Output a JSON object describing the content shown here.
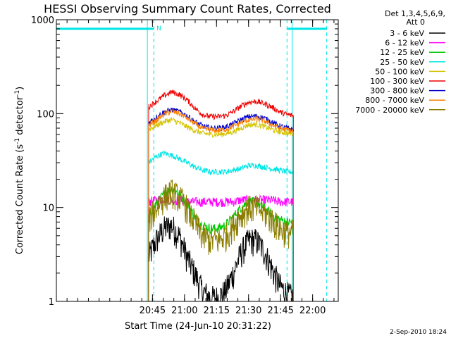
{
  "chart_data": {
    "type": "line",
    "title": "HESSI Observing Summary Count Rates, Corrected",
    "xlabel": "Start Time (24-Jun-10 20:31:22)",
    "ylabel_main": "Corrected Count Rate (s",
    "ylabel_exp1": "-1",
    "ylabel_mid": " detector",
    "ylabel_exp2": "-1",
    "ylabel_end": ")",
    "y_scale": "log",
    "ylim": [
      1,
      1000
    ],
    "xlim_minutes": [
      20.0,
      22.2
    ],
    "x_start_time": "20:31:22",
    "x_ticks": [
      {
        "value": 20.75,
        "label": "20:45"
      },
      {
        "value": 21.0,
        "label": "21:00"
      },
      {
        "value": 21.25,
        "label": "21:15"
      },
      {
        "value": 21.5,
        "label": "21:30"
      },
      {
        "value": 21.75,
        "label": "21:45"
      },
      {
        "value": 22.0,
        "label": "22:00"
      }
    ],
    "y_ticks": [
      {
        "value": 1,
        "label": "1"
      },
      {
        "value": 10,
        "label": "10"
      },
      {
        "value": 100,
        "label": "100"
      },
      {
        "value": 1000,
        "label": "1000"
      }
    ],
    "grid": false,
    "legend_position": "right",
    "legend_header": [
      "Det 1,3,4,5,6,9,",
      "Att 0"
    ],
    "time_x": [
      20.72,
      20.78,
      20.84,
      20.9,
      20.96,
      21.02,
      21.08,
      21.14,
      21.2,
      21.26,
      21.32,
      21.38,
      21.44,
      21.5,
      21.56,
      21.62,
      21.68,
      21.74,
      21.8,
      21.85
    ],
    "series": [
      {
        "name": "3 - 6 keV",
        "color": "#000000",
        "values": [
          3,
          4.5,
          6,
          6.5,
          5,
          3,
          2,
          1.3,
          1.1,
          1.1,
          1.3,
          2,
          3.3,
          4.5,
          4.5,
          3.5,
          2.3,
          1.5,
          1.2,
          1.1
        ]
      },
      {
        "name": "6 - 12 keV",
        "color": "#ff00ff",
        "values": [
          11.5,
          12,
          12.5,
          12,
          12,
          11.5,
          11.5,
          11.5,
          11.5,
          11.5,
          11.5,
          11.5,
          12,
          12,
          12,
          12,
          12,
          11.5,
          11.5,
          11.5
        ]
      },
      {
        "name": "12 - 25 keV",
        "color": "#00cc00",
        "values": [
          8,
          11,
          14,
          16,
          14,
          11,
          8,
          6.5,
          6,
          6,
          6.5,
          8,
          10,
          11.5,
          11.5,
          10,
          8.5,
          7.5,
          7,
          7
        ]
      },
      {
        "name": "25 - 50 keV",
        "color": "#00e6e6",
        "values": [
          30,
          35,
          38,
          36,
          33,
          30,
          27,
          25,
          24,
          24,
          24,
          25,
          26,
          28,
          28,
          27,
          26,
          25,
          24,
          24
        ]
      },
      {
        "name": "50 - 100 keV",
        "color": "#d4c400",
        "values": [
          68,
          75,
          82,
          86,
          80,
          72,
          66,
          62,
          60,
          60,
          61,
          64,
          70,
          76,
          77,
          73,
          68,
          64,
          62,
          61
        ]
      },
      {
        "name": "100 - 300 keV",
        "color": "#ee0000",
        "values": [
          118,
          135,
          155,
          170,
          160,
          140,
          115,
          98,
          93,
          93,
          95,
          105,
          120,
          132,
          135,
          128,
          118,
          105,
          98,
          95
        ]
      },
      {
        "name": "300 - 800 keV",
        "color": "#0000cc",
        "values": [
          80,
          92,
          104,
          110,
          105,
          95,
          82,
          74,
          70,
          70,
          72,
          78,
          86,
          93,
          94,
          90,
          82,
          74,
          70,
          68
        ]
      },
      {
        "name": "800 - 7000 keV",
        "color": "#ff7f00",
        "values": [
          75,
          85,
          98,
          106,
          100,
          90,
          78,
          70,
          67,
          66,
          68,
          73,
          80,
          86,
          88,
          84,
          76,
          70,
          67,
          65
        ]
      },
      {
        "name": "7000 - 20000 keV",
        "color": "#8b7d00",
        "values": [
          7.5,
          10,
          13,
          15,
          13,
          10,
          7,
          5,
          4.5,
          4.5,
          5,
          6.5,
          8.5,
          10,
          10,
          9,
          7.5,
          6,
          5.5,
          5.5
        ]
      }
    ],
    "saa_markers": {
      "top_bar_level": 800,
      "flag_label": "N",
      "solid_lines_x": [
        20.0,
        20.71,
        21.84
      ],
      "dashed_lines_x": [
        20.76,
        21.8,
        22.11
      ],
      "top_bar_spans": [
        [
          20.0,
          20.76
        ],
        [
          21.8,
          22.11
        ]
      ]
    },
    "footer_date": "2-Sep-2010 18:24"
  }
}
